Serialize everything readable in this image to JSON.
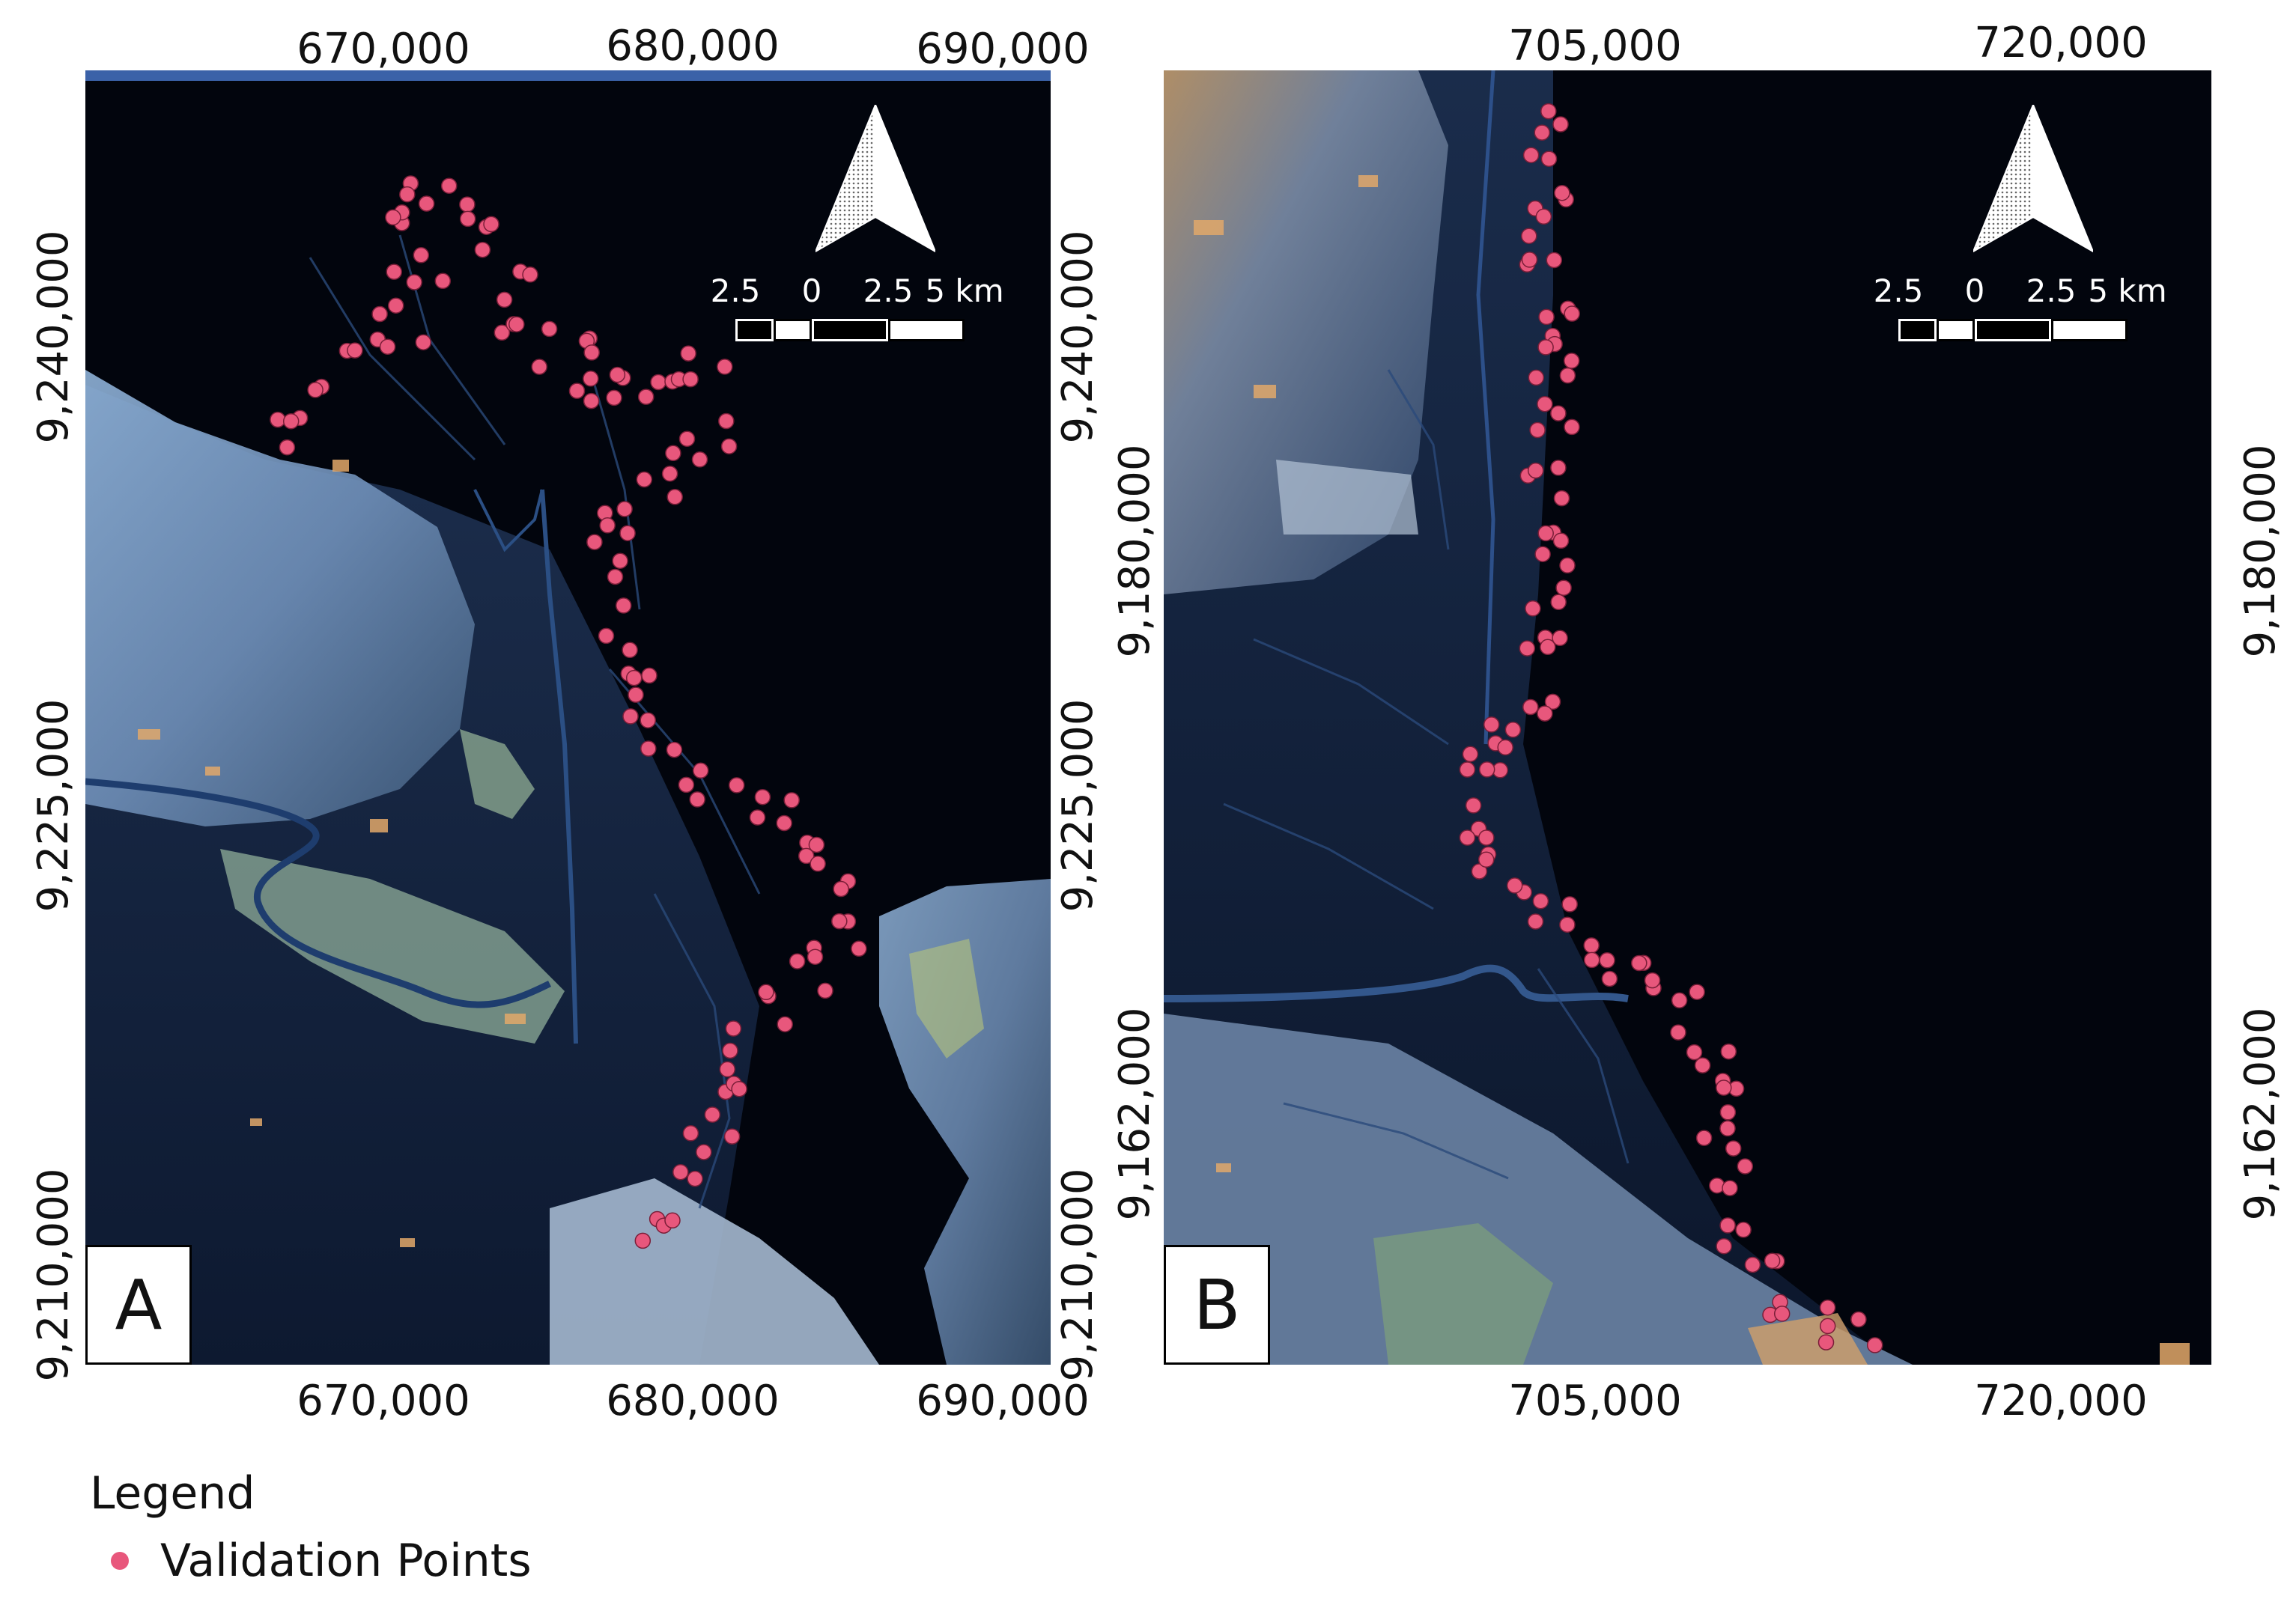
{
  "map_a": {
    "label": "A",
    "x_ticks": [
      "670,000",
      "680,000",
      "690,000"
    ],
    "y_ticks": [
      "9,240,000",
      "9,225,000",
      "9,210,000"
    ],
    "scale": {
      "labels": [
        "2.5",
        "0",
        "2.5",
        "5 km"
      ]
    }
  },
  "map_b": {
    "label": "B",
    "x_ticks": [
      "705,000",
      "720,000"
    ],
    "y_ticks": [
      "9,180,000",
      "9,162,000"
    ],
    "scale": {
      "labels": [
        "2.5",
        "0",
        "2.5",
        "5 km"
      ]
    }
  },
  "legend": {
    "title": "Legend",
    "items": [
      {
        "label": "Validation Points",
        "color": "#e8577c"
      }
    ]
  },
  "colors": {
    "water": "#02050d",
    "land": "#6f8fb8",
    "point": "#e8577c"
  },
  "north_arrow_icon": "north-arrow-icon"
}
